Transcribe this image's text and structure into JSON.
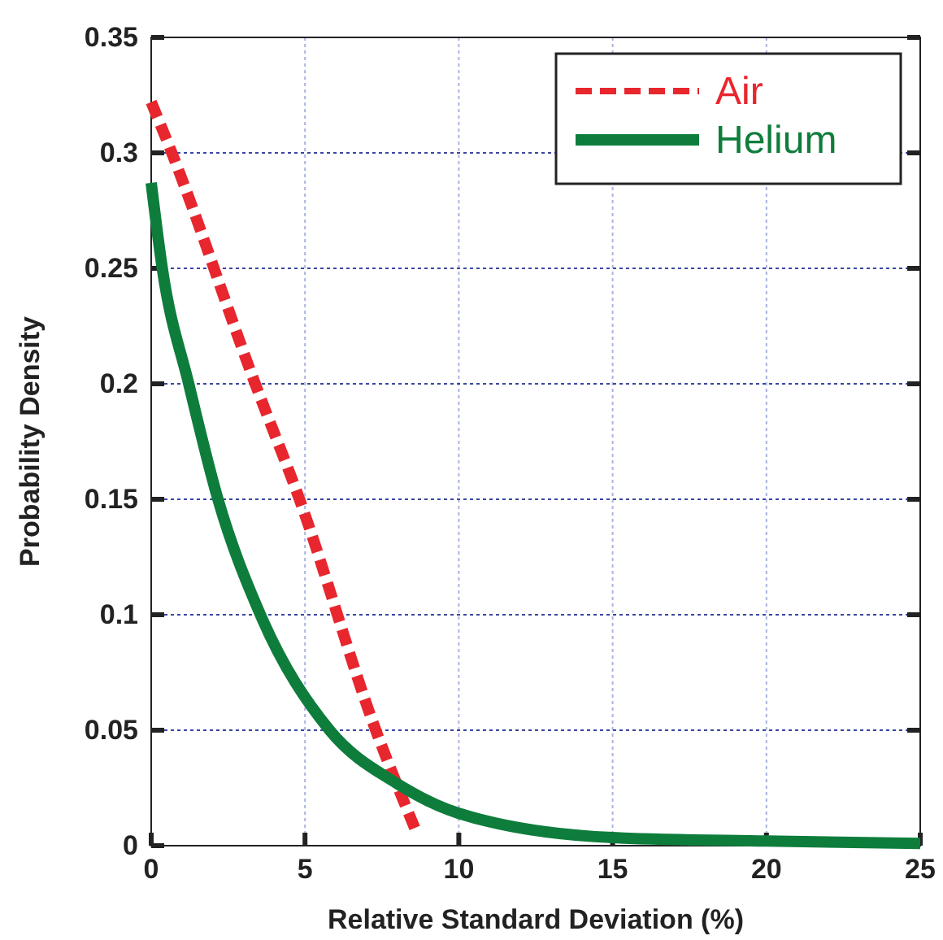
{
  "chart_data": {
    "type": "line",
    "xlabel": "Relative Standard Deviation (%)",
    "ylabel": "Probability Density",
    "xlim": [
      0,
      25
    ],
    "ylim": [
      0,
      0.35
    ],
    "xticks": [
      0,
      5,
      10,
      15,
      20,
      25
    ],
    "yticks": [
      0,
      0.05,
      0.1,
      0.15,
      0.2,
      0.25,
      0.3,
      0.35
    ],
    "grid": true,
    "legend": "top right",
    "series": [
      {
        "name": "Air",
        "color": "#e8262e",
        "line_style": "dashed",
        "x": [
          0,
          0.67,
          3.38,
          4.82,
          7.3,
          8.65
        ],
        "values": [
          0.322,
          0.3,
          0.2,
          0.15,
          0.05,
          0.005
        ]
      },
      {
        "name": "Helium",
        "color": "#0e7d3c",
        "line_style": "solid",
        "x": [
          0,
          0.36,
          1.22,
          2.17,
          3.55,
          5.8,
          7.98,
          10,
          15,
          20,
          25
        ],
        "values": [
          0.287,
          0.25,
          0.2,
          0.15,
          0.1,
          0.05,
          0.027,
          0.014,
          0.0035,
          0.002,
          0.001
        ]
      }
    ]
  }
}
